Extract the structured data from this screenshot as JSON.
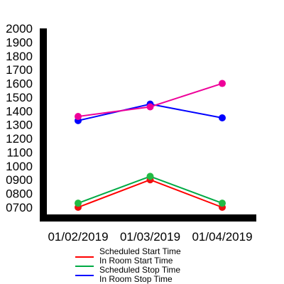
{
  "chart_data": {
    "type": "line",
    "title": "",
    "xlabel": "",
    "ylabel": "",
    "categories": [
      "01/02/2019",
      "01/03/2019",
      "01/04/2019"
    ],
    "y_ticks": [
      "0700",
      "0800",
      "0900",
      "1000",
      "1100",
      "1200",
      "1300",
      "1400",
      "1500",
      "1600",
      "1700",
      "1800",
      "1900",
      "2000"
    ],
    "ylim": [
      700,
      2000
    ],
    "grid": false,
    "legend_position": "bottom",
    "series": [
      {
        "name": "Scheduled Start Time",
        "color": "#ff0000",
        "marker_color": "#ee1111",
        "values": [
          700,
          900,
          700
        ]
      },
      {
        "name": "In Room Start Time",
        "color": "#00aa44",
        "marker_color": "#22bb44",
        "values": [
          730,
          925,
          730
        ]
      },
      {
        "name": "Scheduled Stop Time",
        "color": "#0000ff",
        "marker_color": "#0000ff",
        "values": [
          1330,
          1450,
          1350
        ]
      },
      {
        "name": "In Room Stop Time",
        "color": "#ee0099",
        "marker_color": "#ee0099",
        "values": [
          1360,
          1430,
          1600
        ]
      }
    ]
  }
}
